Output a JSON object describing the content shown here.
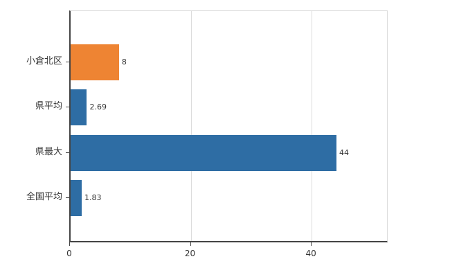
{
  "chart_data": {
    "type": "bar",
    "orientation": "horizontal",
    "title": "",
    "xlabel": "",
    "ylabel": "",
    "categories": [
      "小倉北区",
      "県平均",
      "県最大",
      "全国平均"
    ],
    "values": [
      8,
      2.69,
      44,
      1.83
    ],
    "value_labels": [
      "8",
      "2.69",
      "44",
      "1.83"
    ],
    "bar_colors": [
      "#ee8433",
      "#2e6da4",
      "#2e6da4",
      "#2e6da4"
    ],
    "xlim": [
      0,
      52.7
    ],
    "xticks": [
      0,
      20,
      40
    ],
    "grid": true,
    "legend": false,
    "background": "#ffffff",
    "axis_color": "#444444",
    "grid_color": "#dcdcdc",
    "text_color": "#333333"
  }
}
